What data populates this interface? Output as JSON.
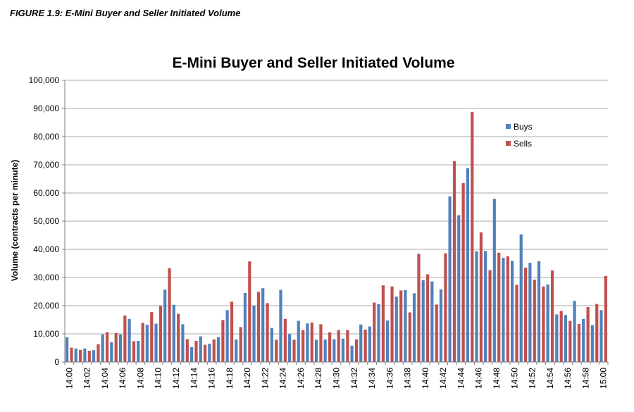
{
  "figure_caption": "FIGURE 1.9: E-Mini Buyer and Seller Initiated Volume",
  "colors": {
    "buys": "#4F81BD",
    "sells": "#C0504D",
    "grid": "#8c8c8c",
    "axis": "#7f7f7f"
  },
  "chart_data": {
    "type": "bar",
    "title": "E-Mini Buyer and Seller Initiated Volume",
    "xlabel": "",
    "ylabel": "Volume (contracts per minute)",
    "ylim": [
      0,
      100000
    ],
    "yticks": [
      "0",
      "10,000",
      "20,000",
      "30,000",
      "40,000",
      "50,000",
      "60,000",
      "70,000",
      "80,000",
      "90,000",
      "100,000"
    ],
    "grid": true,
    "legend_position": "top-right",
    "categories": [
      "14:00",
      "14:01",
      "14:02",
      "14:03",
      "14:04",
      "14:05",
      "14:06",
      "14:07",
      "14:08",
      "14:09",
      "14:10",
      "14:11",
      "14:12",
      "14:13",
      "14:14",
      "14:15",
      "14:16",
      "14:17",
      "14:18",
      "14:19",
      "14:20",
      "14:21",
      "14:22",
      "14:23",
      "14:24",
      "14:25",
      "14:26",
      "14:27",
      "14:28",
      "14:29",
      "14:30",
      "14:31",
      "14:32",
      "14:33",
      "14:34",
      "14:35",
      "14:36",
      "14:37",
      "14:38",
      "14:39",
      "14:40",
      "14:41",
      "14:42",
      "14:43",
      "14:44",
      "14:45",
      "14:46",
      "14:47",
      "14:48",
      "14:49",
      "14:50",
      "14:51",
      "14:52",
      "14:53",
      "14:54",
      "14:55",
      "14:56",
      "14:57",
      "14:58",
      "14:59",
      "15:00"
    ],
    "xtick_labels": [
      "14:00",
      "14:02",
      "14:04",
      "14:06",
      "14:08",
      "14:10",
      "14:12",
      "14:14",
      "14:16",
      "14:18",
      "14:20",
      "14:22",
      "14:24",
      "14:26",
      "14:28",
      "14:30",
      "14:32",
      "14:34",
      "14:36",
      "14:38",
      "14:40",
      "14:42",
      "14:44",
      "14:46",
      "14:48",
      "14:50",
      "14:52",
      "14:54",
      "14:56",
      "14:58",
      "15:00"
    ],
    "series": [
      {
        "name": "Buys",
        "values": [
          8800,
          4800,
          4800,
          4200,
          9800,
          7000,
          9800,
          15300,
          7500,
          13200,
          13600,
          25700,
          20300,
          13400,
          5300,
          9100,
          6500,
          8800,
          18400,
          8000,
          24500,
          20100,
          26200,
          12100,
          25600,
          9900,
          14600,
          13700,
          7900,
          8000,
          8100,
          8300,
          5800,
          13300,
          12600,
          20500,
          14700,
          23200,
          25500,
          24400,
          29000,
          28600,
          25800,
          58800,
          52100,
          68800,
          39300,
          39400,
          57900,
          37000,
          35900,
          45300,
          35200,
          35800,
          27500,
          16900,
          16700,
          21700,
          15300,
          13100,
          18400
        ]
      },
      {
        "name": "Sells",
        "values": [
          5100,
          4300,
          4000,
          6300,
          10600,
          10300,
          16500,
          7400,
          13900,
          17700,
          19900,
          33300,
          17100,
          8100,
          7500,
          6100,
          8000,
          14900,
          21400,
          12400,
          35700,
          24900,
          20900,
          7900,
          15300,
          7900,
          11300,
          14000,
          13400,
          10500,
          11300,
          11300,
          8000,
          11500,
          21100,
          27200,
          26800,
          25400,
          17600,
          38400,
          31100,
          20400,
          38600,
          71300,
          63500,
          88800,
          46000,
          32600,
          38800,
          37500,
          27400,
          33500,
          29200,
          26800,
          32500,
          18100,
          14600,
          13500,
          19500,
          20600,
          30500
        ]
      }
    ]
  }
}
